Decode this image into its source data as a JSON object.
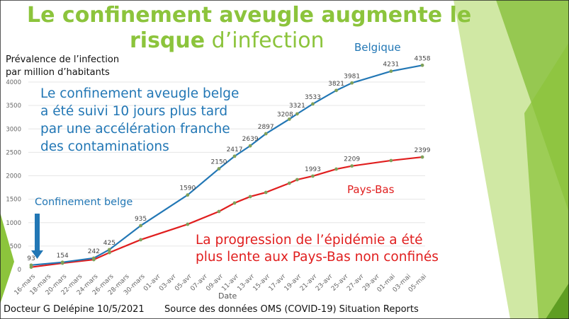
{
  "slide": {
    "title_line1": "Le confinement aveugle augmente le",
    "title_bold": "risque",
    "title_rest": " d’infection",
    "note_belgium": [
      "Le confinement aveugle belge",
      "a été suivi 10 jours plus tard",
      "par une accélération  franche",
      "des contaminations"
    ],
    "note_netherlands": [
      "La progression de l’épidémie a été",
      "plus lente aux Pays-Bas non confinés"
    ],
    "lockdown_label": "Confinement belge",
    "footer_author": "Docteur G Delépine 10/5/2021",
    "footer_source": "Source des données OMS (COVID-19) Situation Reports",
    "colors": {
      "title": "#8cc43c",
      "belgium": "#2277b5",
      "netherlands": "#e01e1e",
      "marker": "#7fa05a"
    }
  },
  "chart_data": {
    "type": "line",
    "ylabel": [
      "Prévalence de l’infection",
      "par million d’habitants"
    ],
    "xlabel": "Date",
    "ylim": [
      0,
      4000
    ],
    "yticks": [
      "0",
      "500",
      "1000",
      "1500",
      "2000",
      "2500",
      "3000",
      "3500",
      "4000"
    ],
    "xticks": [
      "16-mars",
      "18-mars",
      "20-mars",
      "22-mars",
      "24-mars",
      "26-mars",
      "28-mars",
      "30-mars",
      "01-avr",
      "03-avr",
      "05-avr",
      "07-avr",
      "09-avr",
      "11-avr",
      "13-avr",
      "15-avr",
      "17-avr",
      "19-avr",
      "21-avr",
      "23-avr",
      "25-avr",
      "27-avr",
      "29-avr",
      "01-mai",
      "03-mai",
      "05-mai"
    ],
    "x_days_since_16_mars": [
      0,
      4,
      8,
      10,
      14,
      20,
      24,
      26,
      28,
      30,
      33,
      34,
      36,
      39,
      41,
      46,
      50
    ],
    "grid": true,
    "series": [
      {
        "name": "Belgique",
        "values": [
          93,
          154,
          242,
          425,
          935,
          1590,
          2150,
          2417,
          2639,
          2897,
          3208,
          3321,
          3533,
          3821,
          3981,
          4231,
          4358
        ],
        "labels": [
          "93",
          "154",
          "242",
          "425",
          "935",
          "1590",
          "2150",
          "2417",
          "2639",
          "2897",
          "3208",
          "3321",
          "3533",
          "3821",
          "3981",
          "4231",
          "4358"
        ]
      },
      {
        "name": "Pays-Bas",
        "values": [
          50,
          135,
          210,
          360,
          635,
          965,
          1238,
          1419,
          1555,
          1645,
          1842,
          1917,
          1993,
          2143,
          2209,
          2325,
          2399
        ],
        "labels": [
          "",
          "",
          "",
          "",
          "",
          "",
          "",
          "",
          "",
          "",
          "",
          "",
          "1993",
          "",
          "2209",
          "",
          "2399"
        ]
      }
    ]
  }
}
